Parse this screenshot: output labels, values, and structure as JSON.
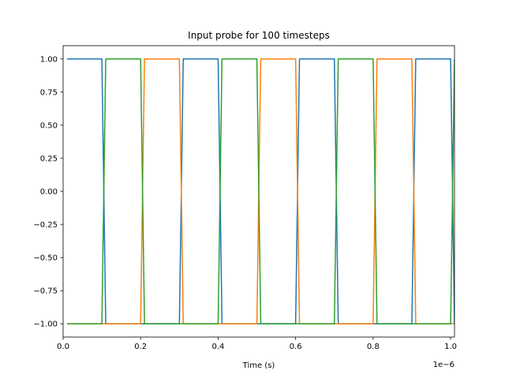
{
  "chart_data": {
    "type": "line",
    "title": "Input probe for 100 timesteps",
    "xlabel": "Time (s)",
    "ylabel": "",
    "x_offset_label": "1e−6",
    "xlim": [
      0,
      1.01
    ],
    "ylim": [
      -1.1,
      1.1
    ],
    "x_ticks": [
      0.0,
      0.2,
      0.4,
      0.6,
      0.8,
      1.0
    ],
    "x_tick_labels": [
      "0.0",
      "0.2",
      "0.4",
      "0.6",
      "0.8",
      "1.0"
    ],
    "y_ticks": [
      -1.0,
      -0.75,
      -0.5,
      -0.25,
      0.0,
      0.25,
      0.5,
      0.75,
      1.0
    ],
    "y_tick_labels": [
      "−1.00",
      "−0.75",
      "−0.50",
      "−0.25",
      "0.00",
      "0.25",
      "0.50",
      "0.75",
      "1.00"
    ],
    "grid": false,
    "series": [
      {
        "color": "#1f77b4",
        "x": [
          0.01,
          0.1,
          0.11,
          0.3,
          0.31,
          0.4,
          0.41,
          0.6,
          0.61,
          0.7,
          0.71,
          0.9,
          0.91,
          1.0,
          1.01
        ],
        "y": [
          1,
          1,
          -1,
          -1,
          1,
          1,
          -1,
          -1,
          1,
          1,
          -1,
          -1,
          1,
          1,
          -1
        ]
      },
      {
        "color": "#ff7f0e",
        "x": [
          0.01,
          0.2,
          0.21,
          0.3,
          0.31,
          0.5,
          0.51,
          0.6,
          0.61,
          0.8,
          0.81,
          0.9,
          0.91,
          1.01
        ],
        "y": [
          -1,
          -1,
          1,
          1,
          -1,
          -1,
          1,
          1,
          -1,
          -1,
          1,
          1,
          -1,
          -1
        ]
      },
      {
        "color": "#2ca02c",
        "x": [
          0.01,
          0.1,
          0.11,
          0.2,
          0.21,
          0.4,
          0.41,
          0.5,
          0.51,
          0.7,
          0.71,
          0.8,
          0.81,
          1.0,
          1.01
        ],
        "y": [
          -1,
          -1,
          1,
          1,
          -1,
          -1,
          1,
          1,
          -1,
          -1,
          1,
          1,
          -1,
          -1,
          1
        ]
      }
    ]
  }
}
